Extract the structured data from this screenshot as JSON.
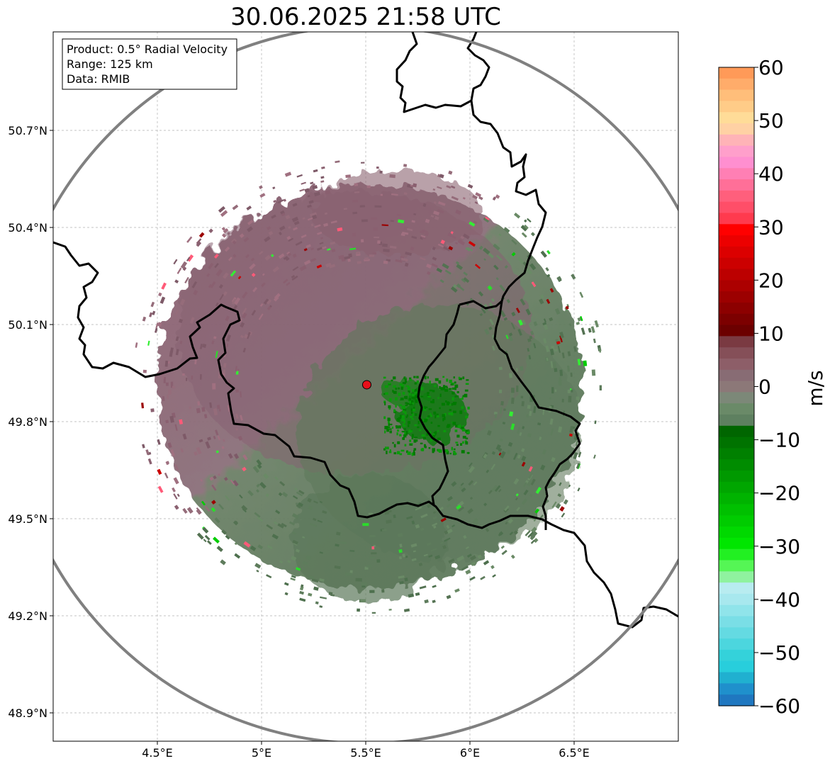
{
  "title": "30.06.2025 21:58 UTC",
  "info_box": {
    "product": "Product: 0.5° Radial Velocity",
    "range": "Range: 125 km",
    "data": "Data: RMIB"
  },
  "map": {
    "lon_range": [
      4.0,
      7.0
    ],
    "lat_range": [
      48.8,
      51.0
    ],
    "x_ticks": [
      {
        "value": 4.5,
        "label": "4.5°E"
      },
      {
        "value": 5.0,
        "label": "5°E"
      },
      {
        "value": 5.5,
        "label": "5.5°E"
      },
      {
        "value": 6.0,
        "label": "6°E"
      },
      {
        "value": 6.5,
        "label": "6.5°E"
      }
    ],
    "y_ticks": [
      {
        "value": 50.7,
        "label": "50.7°N"
      },
      {
        "value": 50.4,
        "label": "50.4°N"
      },
      {
        "value": 50.1,
        "label": "50.1°N"
      },
      {
        "value": 49.8,
        "label": "49.8°N"
      },
      {
        "value": 49.5,
        "label": "49.5°N"
      },
      {
        "value": 49.2,
        "label": "49.2°N"
      },
      {
        "value": 48.9,
        "label": "48.9°N"
      }
    ],
    "grid": true,
    "radar_site": {
      "lon": 5.505,
      "lat": 49.914,
      "color": "#e8101a"
    },
    "range_ring_color": "#808080"
  },
  "colorbar": {
    "unit": "m/s",
    "min": -60,
    "max": 60,
    "ticks": [
      60,
      50,
      40,
      30,
      20,
      10,
      0,
      -10,
      -20,
      -30,
      -40,
      -50,
      -60
    ],
    "tick_labels": [
      "60",
      "50",
      "40",
      "30",
      "20",
      "10",
      "0",
      "−10",
      "−20",
      "−30",
      "−40",
      "−50",
      "−60"
    ],
    "colors_top_to_bottom": [
      "#ff9a58",
      "#ffac6a",
      "#ffbe7a",
      "#ffcc88",
      "#ffdc98",
      "#ffd1a4",
      "#ffb3b7",
      "#ff9fcb",
      "#ff8fd0",
      "#ff7fb4",
      "#ff6f98",
      "#ff5f7c",
      "#ff4e68",
      "#ff3a4e",
      "#ff0000",
      "#ec0000",
      "#dc0000",
      "#cc0000",
      "#bc0000",
      "#ac0000",
      "#9c0000",
      "#8c0000",
      "#7c0000",
      "#6c0000",
      "#7a3a42",
      "#854f58",
      "#8d5e68",
      "#886c74",
      "#8c7878",
      "#7c8878",
      "#6a8a68",
      "#5e8060",
      "#006600",
      "#007300",
      "#008000",
      "#008c00",
      "#009900",
      "#00a600",
      "#00b300",
      "#00c000",
      "#00cc00",
      "#00d900",
      "#00e600",
      "#22f022",
      "#55f655",
      "#8ff29f",
      "#b8ecf0",
      "#a8e8ee",
      "#90e4ea",
      "#7adee6",
      "#64dae2",
      "#4cd6de",
      "#34d2da",
      "#28cedc",
      "#20b0d0",
      "#1f90cc",
      "#1f77c0"
    ]
  }
}
